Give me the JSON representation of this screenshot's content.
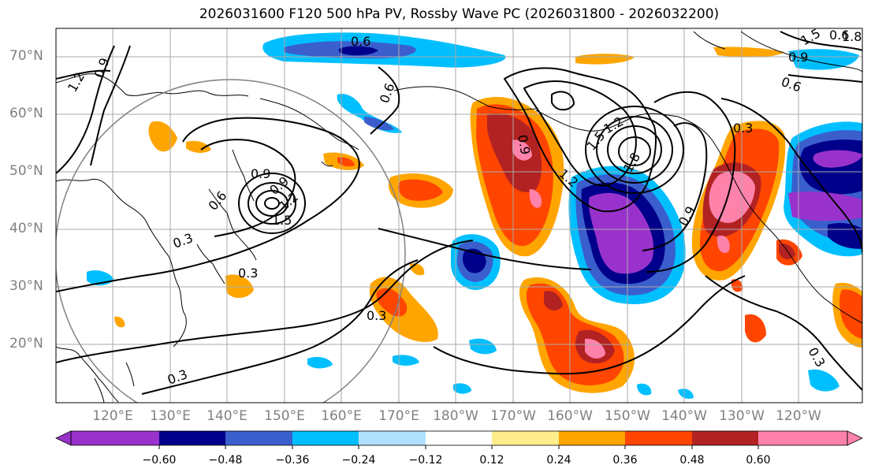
{
  "title": "2026031600 F120 500 hPa PV, Rossby Wave PC (2026031800 - 2026032200)",
  "latitude_labels": [
    "70°N",
    "60°N",
    "50°N",
    "40°N",
    "30°N",
    "20°N"
  ],
  "longitude_labels": [
    "120°E",
    "130°E",
    "140°E",
    "150°E",
    "160°E",
    "170°E",
    "180°W",
    "170°W",
    "160°W",
    "150°W",
    "140°W",
    "130°W",
    "120°W"
  ],
  "contour_labels": [
    "0.6",
    "0.9",
    "1.2",
    "0.9",
    "0.6",
    "0.3",
    "0.9",
    "1.2",
    "1.5",
    "0.3",
    "0.3",
    "0.3",
    "0.6",
    "0.9",
    "1.2",
    "1.5",
    "1.8",
    "1.2",
    "0.9",
    "0.6",
    "0.3",
    "0.9",
    "0.6",
    "1.5",
    "1.8",
    "0.3"
  ],
  "colorbar": {
    "ticks": [
      "−0.60",
      "−0.48",
      "−0.36",
      "−0.24",
      "−0.12",
      "0.12",
      "0.24",
      "0.36",
      "0.48",
      "0.60"
    ],
    "colors": [
      "#9932CC",
      "#00008B",
      "#3A5FCD",
      "#00BFFF",
      "#B0E2FF",
      "#FFFFFF",
      "#FFEC8B",
      "#FFA500",
      "#FF4500",
      "#B22222",
      "#FF82AB"
    ]
  },
  "colors": {
    "strong_neg": "#9932CC",
    "neg2": "#00008B",
    "neg3": "#3A5FCD",
    "neg4": "#00BFFF",
    "pos1": "#FFA500",
    "pos2": "#FF4500",
    "pos3": "#B22222",
    "pos4": "#FF82AB",
    "gridline": "#999999",
    "coast": "#000000",
    "circle": "#808080",
    "axis_label": "#808080"
  }
}
